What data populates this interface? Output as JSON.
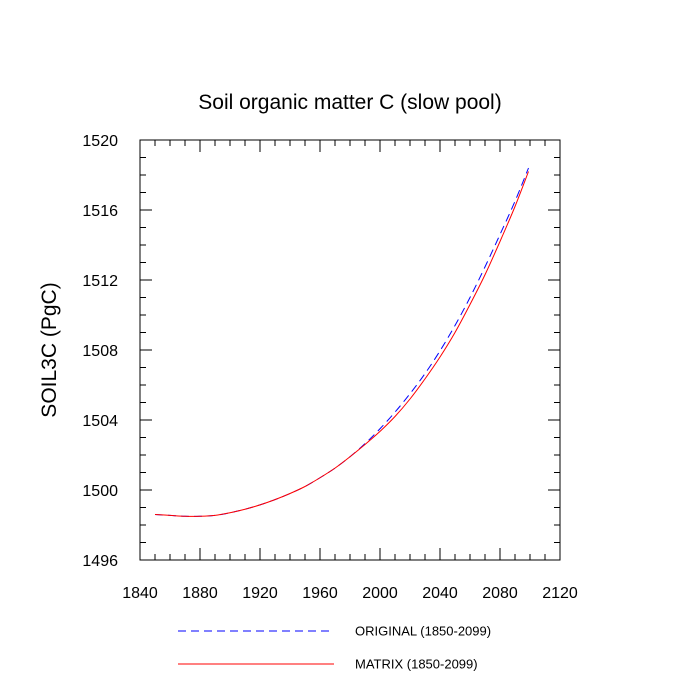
{
  "chart_data": {
    "type": "line",
    "title": "Soil organic matter C (slow pool)",
    "xlabel": "",
    "ylabel": "SOIL3C  (PgC)",
    "xlim": [
      1840,
      2120
    ],
    "ylim": [
      1496,
      1520
    ],
    "x_ticks": [
      1840,
      1880,
      1920,
      1960,
      2000,
      2040,
      2080,
      2120
    ],
    "x_tick_labels": [
      "1840",
      "1880",
      "1920",
      "1960",
      "2000",
      "2040",
      "2080",
      "2120"
    ],
    "y_ticks": [
      1496,
      1500,
      1504,
      1508,
      1512,
      1516,
      1520
    ],
    "y_tick_labels": [
      "1496",
      "1500",
      "1504",
      "1508",
      "1512",
      "1516",
      "1520"
    ],
    "x_minor_step": 10,
    "y_minor_step": 1,
    "grid": false,
    "legend_position": "bottom",
    "series": [
      {
        "name": "ORIGINAL (1850-2099)",
        "color": "#0000ff",
        "style": "dashed",
        "x": [
          1850,
          1860,
          1870,
          1880,
          1890,
          1900,
          1910,
          1920,
          1930,
          1940,
          1950,
          1960,
          1970,
          1980,
          1990,
          2000,
          2010,
          2020,
          2030,
          2040,
          2050,
          2060,
          2070,
          2080,
          2090,
          2099
        ],
        "y": [
          1498.6,
          1498.55,
          1498.5,
          1498.5,
          1498.55,
          1498.7,
          1498.9,
          1499.15,
          1499.45,
          1499.8,
          1500.2,
          1500.7,
          1501.25,
          1501.9,
          1502.65,
          1503.5,
          1504.45,
          1505.5,
          1506.65,
          1507.95,
          1509.4,
          1511.0,
          1512.75,
          1514.6,
          1516.5,
          1518.4
        ]
      },
      {
        "name": "MATRIX (1850-2099)",
        "color": "#ff0000",
        "style": "solid",
        "x": [
          1850,
          1860,
          1870,
          1880,
          1890,
          1900,
          1910,
          1920,
          1930,
          1940,
          1950,
          1960,
          1970,
          1980,
          1990,
          2000,
          2010,
          2020,
          2030,
          2040,
          2050,
          2060,
          2070,
          2080,
          2090,
          2099
        ],
        "y": [
          1498.6,
          1498.55,
          1498.5,
          1498.5,
          1498.55,
          1498.7,
          1498.9,
          1499.15,
          1499.45,
          1499.8,
          1500.2,
          1500.7,
          1501.25,
          1501.9,
          1502.6,
          1503.35,
          1504.2,
          1505.2,
          1506.35,
          1507.6,
          1509.0,
          1510.6,
          1512.3,
          1514.2,
          1516.2,
          1518.2
        ]
      }
    ]
  }
}
